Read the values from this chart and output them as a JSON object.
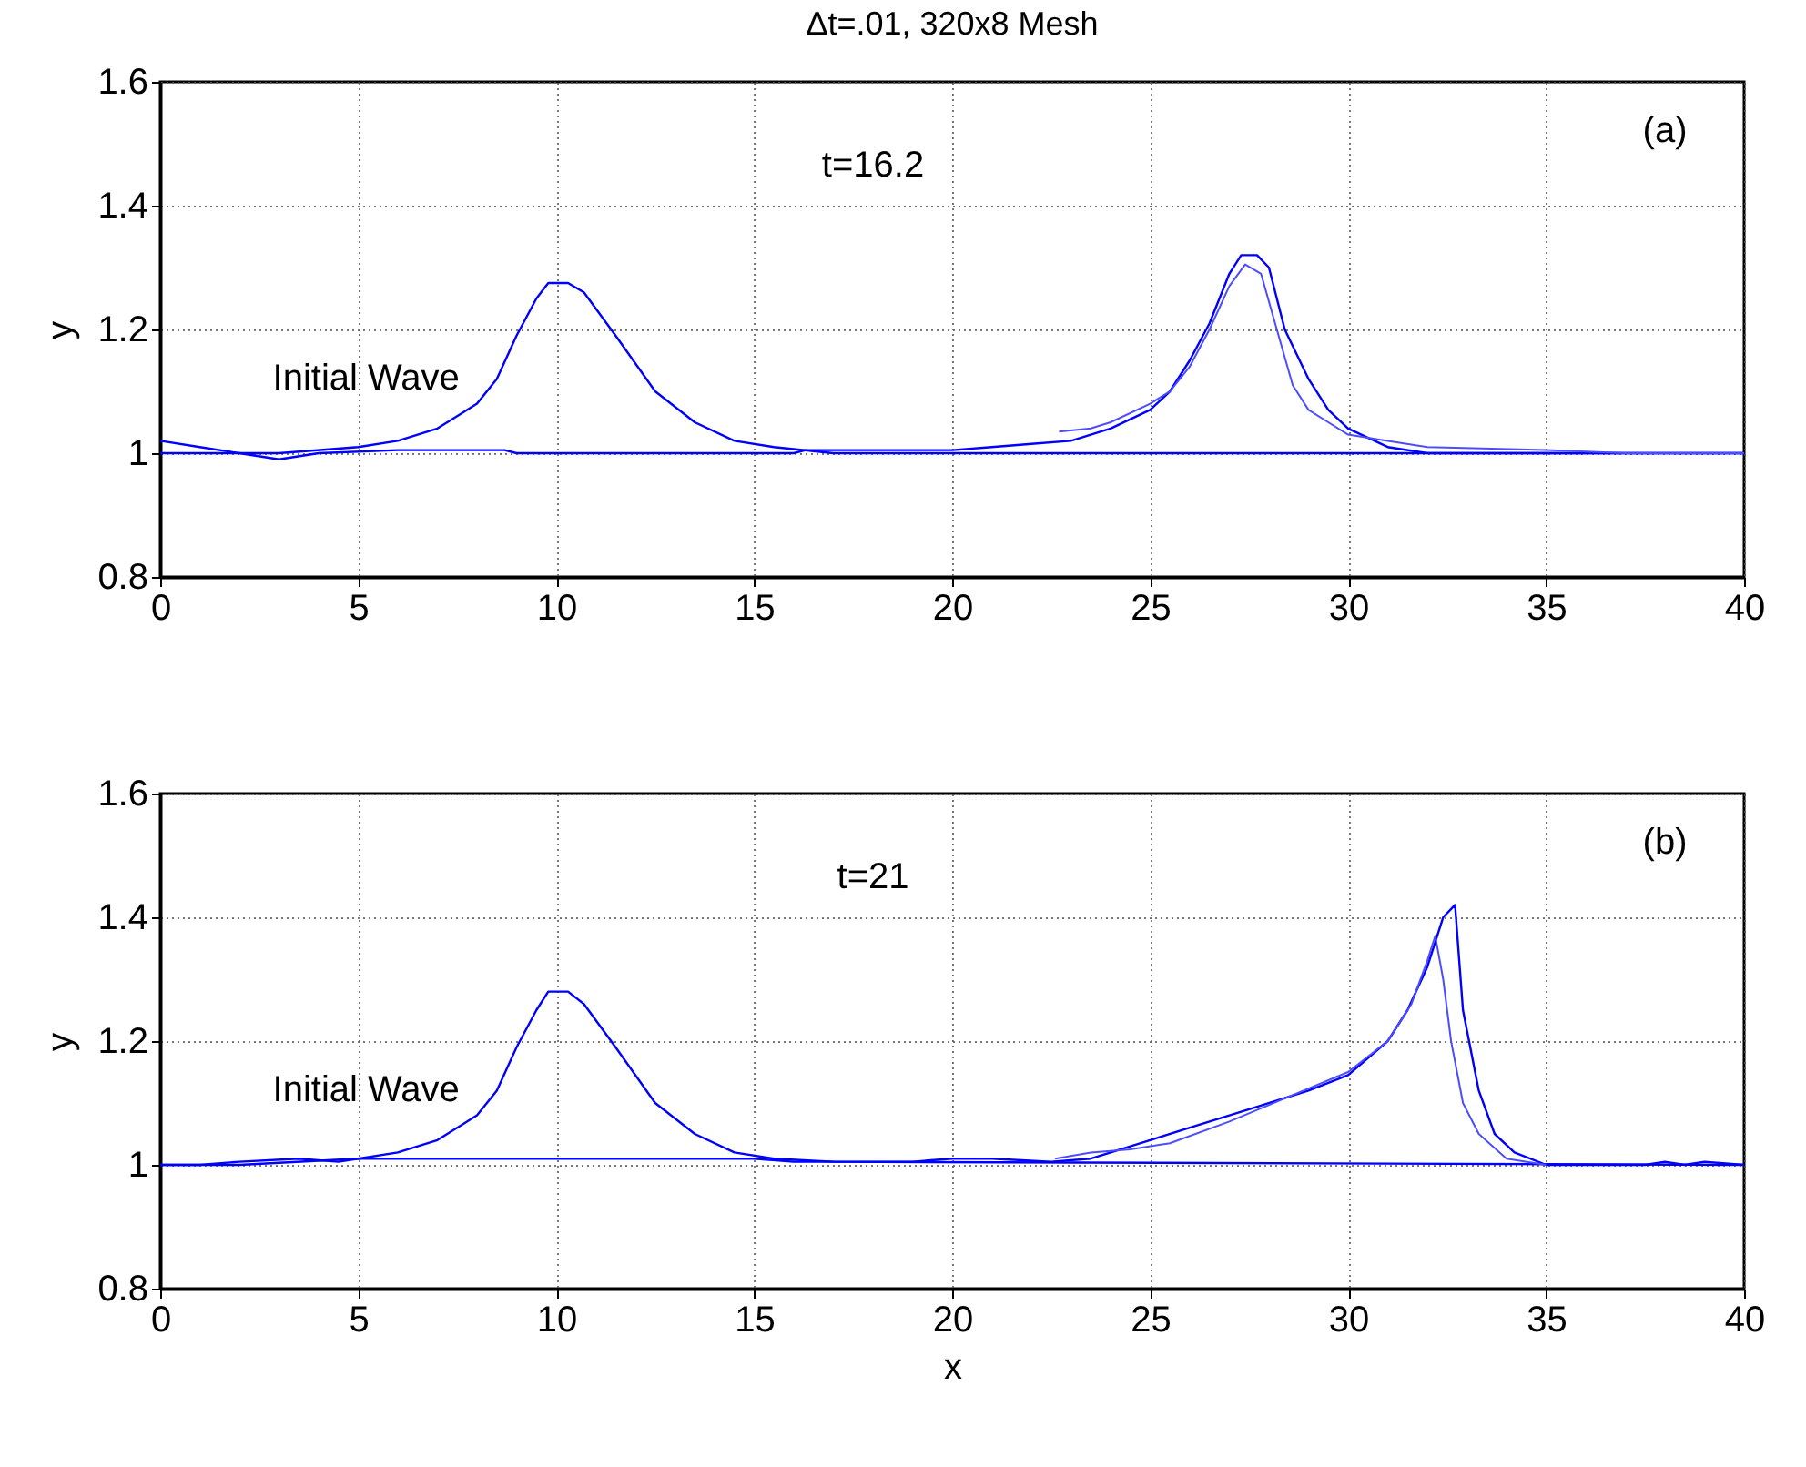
{
  "chart_data": [
    {
      "type": "line",
      "title": "Δt=.01, 320x8 Mesh",
      "ylabel": "y",
      "xlim": [
        0,
        40
      ],
      "xticks": [
        0,
        5,
        10,
        15,
        20,
        25,
        30,
        35,
        40
      ],
      "ylim": [
        0.8,
        1.6
      ],
      "yticks": [
        0.8,
        1,
        1.2,
        1.4,
        1.6
      ],
      "grid": true,
      "annotations": [
        "t=16.2",
        "(a)",
        "Initial Wave"
      ],
      "series": [
        {
          "color": "#0000ff",
          "x": [
            0,
            3,
            5,
            6,
            7,
            8,
            8.5,
            9,
            9.5,
            9.8,
            10.3,
            10.7,
            11.5,
            12.5,
            13.5,
            14.5,
            15.5,
            17,
            40
          ],
          "values": [
            1,
            1,
            1.01,
            1.02,
            1.04,
            1.08,
            1.12,
            1.19,
            1.25,
            1.275,
            1.275,
            1.26,
            1.19,
            1.1,
            1.05,
            1.02,
            1.01,
            1,
            1
          ]
        },
        {
          "color": "#0000ff",
          "x": [
            0,
            1,
            2,
            3,
            4,
            6,
            8.7,
            9,
            16,
            16.3,
            20,
            21,
            22,
            23,
            24,
            25,
            25.5,
            26,
            26.5,
            27,
            27.3,
            27.7,
            28,
            28.4,
            29,
            29.5,
            30,
            31,
            32,
            40
          ],
          "values": [
            1.02,
            1.01,
            1,
            0.99,
            1,
            1.005,
            1.005,
            1,
            1,
            1.005,
            1.005,
            1.01,
            1.015,
            1.02,
            1.04,
            1.07,
            1.1,
            1.15,
            1.21,
            1.29,
            1.32,
            1.32,
            1.3,
            1.2,
            1.12,
            1.07,
            1.04,
            1.01,
            1,
            1
          ]
        },
        {
          "color": "#4d4dff",
          "x": [
            22.7,
            23.5,
            24,
            25,
            25.5,
            26,
            26.5,
            27,
            27.4,
            27.8,
            28.2,
            28.6,
            29,
            29.5,
            30,
            31,
            32,
            35,
            37,
            40
          ],
          "values": [
            1.035,
            1.04,
            1.05,
            1.08,
            1.1,
            1.14,
            1.2,
            1.27,
            1.305,
            1.29,
            1.2,
            1.11,
            1.07,
            1.05,
            1.03,
            1.02,
            1.01,
            1.005,
            1,
            1
          ]
        }
      ]
    },
    {
      "type": "line",
      "xlabel": "x",
      "ylabel": "y",
      "xlim": [
        0,
        40
      ],
      "xticks": [
        0,
        5,
        10,
        15,
        20,
        25,
        30,
        35,
        40
      ],
      "ylim": [
        0.8,
        1.6
      ],
      "yticks": [
        0.8,
        1,
        1.2,
        1.4,
        1.6
      ],
      "grid": true,
      "annotations": [
        "t=21",
        "(b)",
        "Initial Wave"
      ],
      "series": [
        {
          "color": "#0000ff",
          "x": [
            0,
            2,
            5,
            6,
            7,
            8,
            8.5,
            9,
            9.5,
            9.8,
            10.3,
            10.7,
            11.5,
            12.5,
            13.5,
            14.5,
            15.5,
            17,
            40
          ],
          "values": [
            1,
            1,
            1.01,
            1.02,
            1.04,
            1.08,
            1.12,
            1.19,
            1.25,
            1.28,
            1.28,
            1.26,
            1.19,
            1.1,
            1.05,
            1.02,
            1.01,
            1.005,
            1
          ]
        },
        {
          "color": "#0000ff",
          "x": [
            0,
            1,
            2,
            3.5,
            4.5,
            5,
            7,
            10,
            15,
            16,
            19,
            20,
            21,
            22.5,
            23.5,
            25,
            26,
            27.5,
            29,
            30,
            31,
            31.5,
            32,
            32.4,
            32.7,
            32.9,
            33.3,
            33.7,
            34.2,
            35,
            37.5,
            38,
            38.5,
            39,
            40
          ],
          "values": [
            1,
            1,
            1.005,
            1.01,
            1.005,
            1.01,
            1.01,
            1.01,
            1.01,
            1.005,
            1.005,
            1.01,
            1.01,
            1.005,
            1.01,
            1.04,
            1.06,
            1.09,
            1.12,
            1.145,
            1.2,
            1.25,
            1.32,
            1.4,
            1.42,
            1.25,
            1.12,
            1.05,
            1.02,
            1,
            1,
            1.005,
            1,
            1.005,
            1
          ]
        },
        {
          "color": "#4d4dff",
          "x": [
            22.6,
            23.5,
            24.5,
            25.5,
            27,
            28.5,
            30,
            31,
            31.6,
            32,
            32.2,
            32.4,
            32.6,
            32.9,
            33.3,
            34,
            35
          ],
          "values": [
            1.01,
            1.02,
            1.025,
            1.035,
            1.07,
            1.11,
            1.15,
            1.2,
            1.26,
            1.33,
            1.37,
            1.3,
            1.2,
            1.1,
            1.05,
            1.01,
            1
          ]
        }
      ]
    }
  ]
}
